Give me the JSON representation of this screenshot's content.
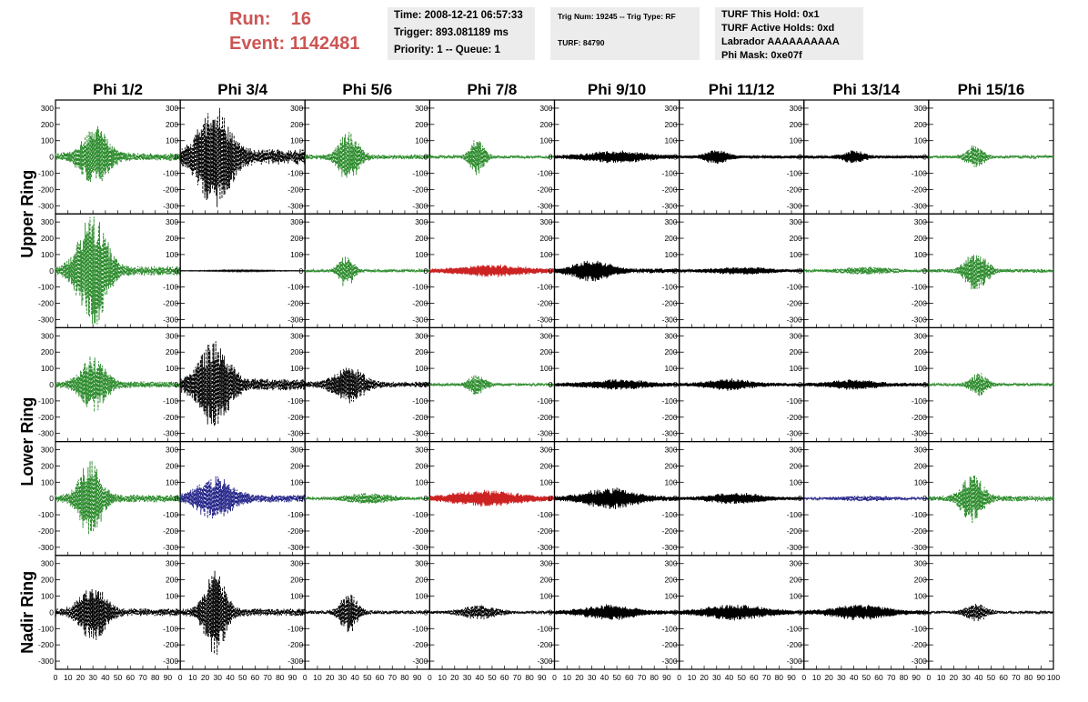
{
  "run_label": "Run:    16",
  "event_label": "Event: 1142481",
  "info": {
    "time": "Time: 2008-12-21 06:57:33",
    "trigger": "Trigger: 893.081189 ms",
    "priority": "Priority: 1 -- Queue: 1",
    "trig_num": "Trig Num: 19245 -- Trig Type: RF",
    "turf": "TURF: 84790",
    "turf_hold": "TURF This Hold: 0x1",
    "turf_active": "TURF Active Holds: 0xd",
    "labrador": "Labrador AAAAAAAAAA",
    "phi_mask": "Phi Mask: 0xe07f"
  },
  "colors": {
    "green": "#2a8a2a",
    "black": "#000000",
    "red": "#cc2222",
    "blue": "#222288"
  },
  "chart_data": {
    "type": "line",
    "title": "",
    "columns": [
      "Phi 1/2",
      "Phi 3/4",
      "Phi 5/6",
      "Phi 7/8",
      "Phi 9/10",
      "Phi 11/12",
      "Phi 13/14",
      "Phi 15/16"
    ],
    "row_labels": [
      "Upper Ring",
      "Lower Ring",
      "Nadir Ring"
    ],
    "xlim": [
      0,
      100
    ],
    "ylim": [
      -350,
      350
    ],
    "x_ticks": [
      0,
      10,
      20,
      30,
      40,
      50,
      60,
      70,
      80,
      90,
      100
    ],
    "y_ticks": [
      -300,
      -200,
      -100,
      0,
      100,
      200,
      300
    ],
    "grid": false,
    "waveforms": [
      [
        {
          "color": "green",
          "style": "dashed",
          "amp": 170,
          "center": 32,
          "width": 20,
          "noise": 40
        },
        {
          "color": "black",
          "style": "dashed",
          "amp": 300,
          "center": 28,
          "width": 22,
          "noise": 80
        },
        {
          "color": "green",
          "style": "dashed",
          "amp": 150,
          "center": 35,
          "width": 14,
          "noise": 25
        },
        {
          "color": "green",
          "style": "dashed",
          "amp": 110,
          "center": 38,
          "width": 10,
          "noise": 15
        },
        {
          "color": "black",
          "style": "solid",
          "amp": 30,
          "center": 50,
          "width": 40,
          "noise": 20
        },
        {
          "color": "black",
          "style": "solid",
          "amp": 40,
          "center": 30,
          "width": 15,
          "noise": 15
        },
        {
          "color": "black",
          "style": "solid",
          "amp": 35,
          "center": 40,
          "width": 15,
          "noise": 15
        },
        {
          "color": "green",
          "style": "dashed",
          "amp": 70,
          "center": 37,
          "width": 12,
          "noise": 15
        }
      ],
      [
        {
          "color": "green",
          "style": "dashed",
          "amp": 340,
          "center": 30,
          "width": 20,
          "noise": 50
        },
        {
          "color": "black",
          "style": "solid",
          "amp": 4,
          "center": 50,
          "width": 40,
          "noise": 3
        },
        {
          "color": "green",
          "style": "dashed",
          "amp": 100,
          "center": 33,
          "width": 10,
          "noise": 15
        },
        {
          "color": "red",
          "style": "solid",
          "amp": 30,
          "center": 50,
          "width": 45,
          "noise": 20
        },
        {
          "color": "black",
          "style": "solid",
          "amp": 60,
          "center": 30,
          "width": 25,
          "noise": 25
        },
        {
          "color": "black",
          "style": "solid",
          "amp": 20,
          "center": 50,
          "width": 40,
          "noise": 12
        },
        {
          "color": "green",
          "style": "dashed",
          "amp": 20,
          "center": 50,
          "width": 40,
          "noise": 10
        },
        {
          "color": "green",
          "style": "dashed",
          "amp": 120,
          "center": 38,
          "width": 15,
          "noise": 20
        }
      ],
      [
        {
          "color": "green",
          "style": "dashed",
          "amp": 160,
          "center": 30,
          "width": 18,
          "noise": 35
        },
        {
          "color": "black",
          "style": "dashed",
          "amp": 250,
          "center": 27,
          "width": 22,
          "noise": 60
        },
        {
          "color": "black",
          "style": "dashed",
          "amp": 100,
          "center": 35,
          "width": 22,
          "noise": 30
        },
        {
          "color": "green",
          "style": "dashed",
          "amp": 60,
          "center": 38,
          "width": 12,
          "noise": 15
        },
        {
          "color": "black",
          "style": "solid",
          "amp": 25,
          "center": 50,
          "width": 40,
          "noise": 18
        },
        {
          "color": "black",
          "style": "solid",
          "amp": 30,
          "center": 40,
          "width": 30,
          "noise": 18
        },
        {
          "color": "black",
          "style": "solid",
          "amp": 25,
          "center": 40,
          "width": 30,
          "noise": 18
        },
        {
          "color": "green",
          "style": "dashed",
          "amp": 70,
          "center": 40,
          "width": 12,
          "noise": 15
        }
      ],
      [
        {
          "color": "green",
          "style": "dashed",
          "amp": 220,
          "center": 28,
          "width": 16,
          "noise": 40
        },
        {
          "color": "blue",
          "style": "dashed",
          "amp": 120,
          "center": 28,
          "width": 25,
          "noise": 40
        },
        {
          "color": "green",
          "style": "dashed",
          "amp": 30,
          "center": 50,
          "width": 35,
          "noise": 10
        },
        {
          "color": "red",
          "style": "solid",
          "amp": 40,
          "center": 45,
          "width": 45,
          "noise": 25
        },
        {
          "color": "black",
          "style": "solid",
          "amp": 55,
          "center": 45,
          "width": 35,
          "noise": 25
        },
        {
          "color": "black",
          "style": "solid",
          "amp": 30,
          "center": 45,
          "width": 35,
          "noise": 15
        },
        {
          "color": "blue",
          "style": "dashed",
          "amp": 15,
          "center": 50,
          "width": 40,
          "noise": 8
        },
        {
          "color": "green",
          "style": "dashed",
          "amp": 140,
          "center": 35,
          "width": 15,
          "noise": 30
        }
      ],
      [
        {
          "color": "black",
          "style": "dashed",
          "amp": 170,
          "center": 30,
          "width": 18,
          "noise": 40
        },
        {
          "color": "black",
          "style": "dashed",
          "amp": 250,
          "center": 28,
          "width": 15,
          "noise": 40
        },
        {
          "color": "black",
          "style": "dashed",
          "amp": 120,
          "center": 35,
          "width": 12,
          "noise": 20
        },
        {
          "color": "black",
          "style": "dashed",
          "amp": 40,
          "center": 40,
          "width": 25,
          "noise": 15
        },
        {
          "color": "black",
          "style": "solid",
          "amp": 40,
          "center": 45,
          "width": 35,
          "noise": 20
        },
        {
          "color": "black",
          "style": "solid",
          "amp": 40,
          "center": 45,
          "width": 40,
          "noise": 22
        },
        {
          "color": "black",
          "style": "solid",
          "amp": 40,
          "center": 45,
          "width": 35,
          "noise": 22
        },
        {
          "color": "black",
          "style": "dashed",
          "amp": 50,
          "center": 38,
          "width": 15,
          "noise": 15
        }
      ]
    ]
  }
}
